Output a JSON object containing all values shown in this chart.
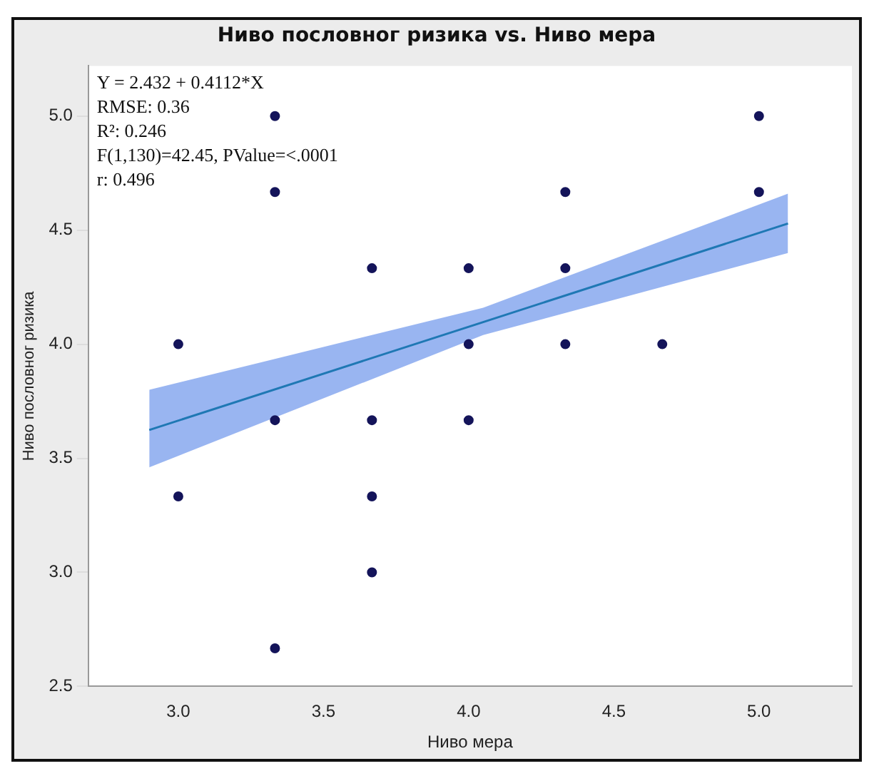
{
  "chart_data": {
    "type": "scatter",
    "title": "Ниво пословног ризика vs. Ниво мера",
    "xlabel": "Ниво мера",
    "ylabel": "Ниво пословног ризика",
    "xlim": [
      2.69,
      5.32
    ],
    "xticks": [
      {
        "value": 3,
        "label": "3.0"
      },
      3.5,
      {
        "value": 4,
        "label": "4.0"
      },
      4.5,
      {
        "value": 5,
        "label": "5.0"
      }
    ],
    "ylim": [
      2.5,
      5.22
    ],
    "yticks": [
      2.5,
      {
        "value": 3,
        "label": "3.0"
      },
      3.5,
      {
        "value": 4,
        "label": "4.0"
      },
      4.5,
      {
        "value": 5,
        "label": "5.0"
      }
    ],
    "grid": false,
    "legend": false,
    "marker": "circle",
    "annotations": [
      "Y = 2.432 + 0.4112*X",
      "RMSE: 0.36",
      "R²: 0.246",
      "F(1,130)=42.45, PValue=<.0001",
      "r: 0.496"
    ],
    "series": [
      {
        "color": "#14145a",
        "x": [
          3,
          3,
          3.333,
          3.333,
          3.333,
          3.333,
          3.667,
          3.667,
          3.667,
          3.667,
          4,
          4,
          4,
          4.333,
          4.333,
          4.333,
          4.667,
          5,
          5
        ],
        "values": [
          4,
          3.333,
          5,
          4.667,
          3.667,
          2.667,
          4.333,
          3.667,
          3.333,
          3,
          4.333,
          4,
          3.667,
          4.667,
          4.333,
          4,
          4,
          5,
          4.667
        ]
      },
      {
        "type": "line",
        "color": "#1f78b4",
        "marker": "none",
        "line_style": "solid",
        "x": [
          2.9,
          4.05,
          5.1
        ],
        "values": [
          3.624,
          4.097,
          4.529
        ],
        "lower": [
          3.46,
          4.04,
          4.4
        ],
        "upper": [
          3.8,
          4.16,
          4.66
        ]
      }
    ]
  }
}
